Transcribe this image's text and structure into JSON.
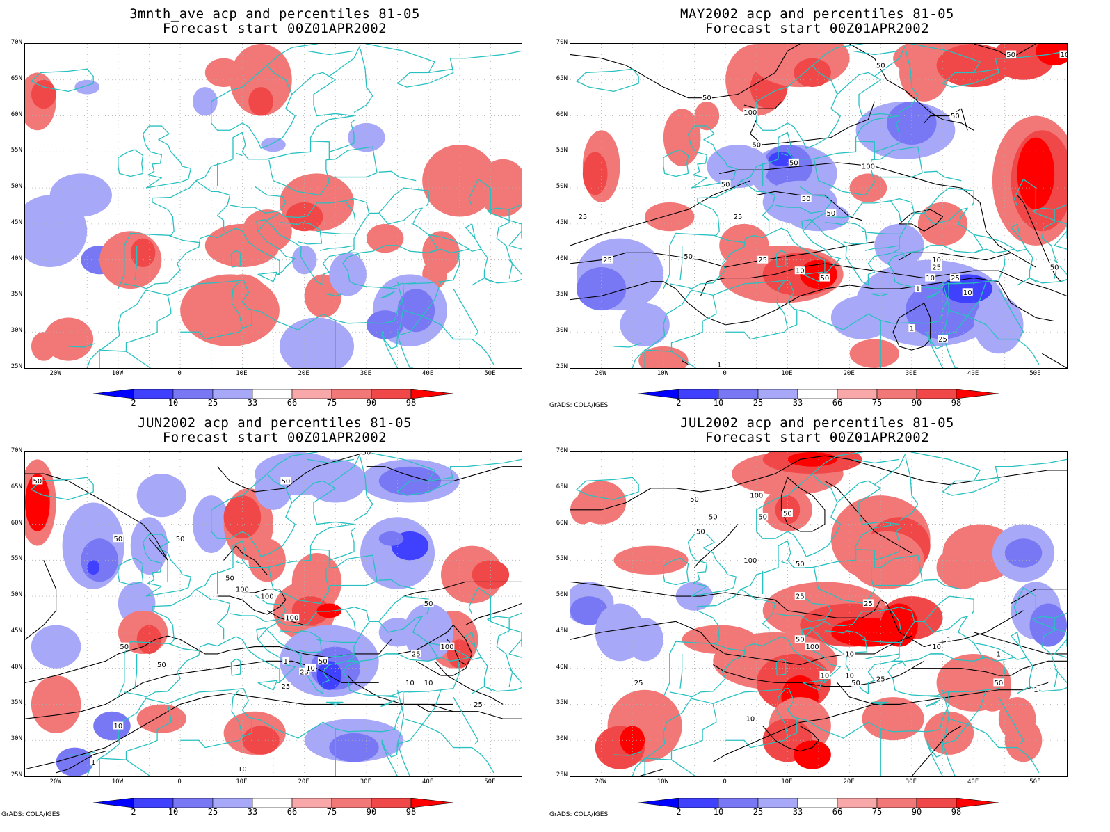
{
  "panels": [
    {
      "title_line1": "3mnth_ave acp and percentiles 81-05",
      "title_line2": "Forecast start 00Z01APR2002",
      "credit": "",
      "contours": []
    },
    {
      "title_line1": "MAY2002 acp and percentiles 81-05",
      "title_line2": "Forecast start 00Z01APR2002",
      "credit": "GrADS: COLA/IGES",
      "contours": [
        "100",
        "50",
        "50",
        "50",
        "50",
        "50",
        "50",
        "100",
        "50",
        "100",
        "50",
        "50",
        "25",
        "25",
        "50",
        "25",
        "25",
        "10",
        "50",
        "25",
        "10",
        "1",
        "10",
        "10",
        "1",
        "25",
        "25",
        "50",
        "1"
      ]
    },
    {
      "title_line1": "JUN2002 acp and percentiles 81-05",
      "title_line2": "Forecast start 00Z01APR2002",
      "credit": "GrADS: COLA/IGES",
      "contours": [
        "50",
        "50",
        "50",
        "50",
        "50",
        "50",
        "100",
        "100",
        "100",
        "50",
        "50",
        "25",
        "10",
        "1",
        "25",
        "10",
        "50",
        "100",
        "25",
        "10",
        "10",
        "25",
        "1",
        "10",
        "50"
      ]
    },
    {
      "title_line1": "JUL2002 acp and percentiles 81-05",
      "title_line2": "Forecast start 00Z01APR2002",
      "credit": "GrADS: COLA/IGES",
      "contours": [
        "50",
        "50",
        "50",
        "100",
        "50",
        "50",
        "50",
        "100",
        "25",
        "100",
        "25",
        "50",
        "10",
        "10",
        "10",
        "50",
        "25",
        "10",
        "1",
        "1",
        "1",
        "50",
        "25",
        "10"
      ]
    }
  ],
  "lat_labels": [
    "70N",
    "65N",
    "60N",
    "55N",
    "50N",
    "45N",
    "40N",
    "35N",
    "30N",
    "25N"
  ],
  "lon_labels": [
    "20W",
    "10W",
    "0",
    "10E",
    "20E",
    "30E",
    "40E",
    "50E"
  ],
  "colorbar": {
    "labels": [
      "2",
      "10",
      "25",
      "33",
      "66",
      "75",
      "90",
      "98"
    ],
    "colors": [
      "#0000ff",
      "#4040ff",
      "#7878f5",
      "#a8a8f8",
      "#ffffff",
      "#f8a8a8",
      "#f27878",
      "#f04848",
      "#ff0000"
    ]
  },
  "map_colors": {
    "coast": "#28c0c0",
    "contour": "#000000",
    "grid": "#b0b0b0"
  }
}
